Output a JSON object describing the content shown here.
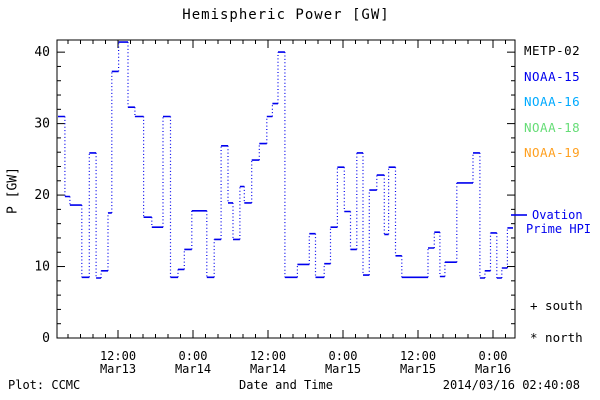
{
  "legend": {
    "satellites": [
      {
        "label": "METP-02",
        "color": "#000000"
      },
      {
        "label": "NOAA-15",
        "color": "#0000ee"
      },
      {
        "label": "NOAA-16",
        "color": "#00aaff"
      },
      {
        "label": "NOAA-18",
        "color": "#66dd77"
      },
      {
        "label": "NOAA-19",
        "color": "#ffa020"
      }
    ],
    "ovation_line1": "Ovation",
    "ovation_line2": "Prime HPI",
    "south_marker": "+ south",
    "north_marker": "* north"
  },
  "footer": {
    "credit": "Plot: CCMC",
    "timestamp": "2014/03/16 02:40:08"
  },
  "chart_data": {
    "type": "line",
    "title": "Hemispheric Power [GW]",
    "xlabel": "Date and Time",
    "ylabel": "P [GW]",
    "ylim": [
      0,
      41.7
    ],
    "y_major_ticks": [
      0,
      10,
      20,
      30,
      40
    ],
    "y_minor_step": 2,
    "x_hours_range": [
      2.24,
      75.52
    ],
    "x_minor_step_hours": 2,
    "x_major_ticks": [
      {
        "hours": 12,
        "time": "12:00",
        "date": "Mar13"
      },
      {
        "hours": 24,
        "time": "0:00",
        "date": "Mar14"
      },
      {
        "hours": 36,
        "time": "12:00",
        "date": "Mar14"
      },
      {
        "hours": 48,
        "time": "0:00",
        "date": "Mar15"
      },
      {
        "hours": 60,
        "time": "12:00",
        "date": "Mar15"
      },
      {
        "hours": 72,
        "time": "0:00",
        "date": "Mar16"
      }
    ],
    "grid": false,
    "legend_position": "right",
    "series": [
      {
        "name": "Ovation Prime HPI",
        "color": "#0000ee",
        "style": "dotted-step",
        "units": "GW",
        "end_hours": 75.2,
        "steps": [
          [
            2.4,
            31.0
          ],
          [
            3.5,
            19.8
          ],
          [
            4.3,
            18.6
          ],
          [
            6.2,
            8.5
          ],
          [
            7.4,
            25.9
          ],
          [
            8.5,
            8.4
          ],
          [
            9.3,
            9.4
          ],
          [
            10.4,
            17.5
          ],
          [
            11.0,
            37.3
          ],
          [
            12.1,
            41.4
          ],
          [
            13.6,
            32.3
          ],
          [
            14.7,
            31.0
          ],
          [
            16.1,
            16.9
          ],
          [
            17.4,
            15.5
          ],
          [
            19.2,
            31.0
          ],
          [
            20.4,
            8.5
          ],
          [
            21.6,
            9.6
          ],
          [
            22.6,
            12.4
          ],
          [
            23.8,
            17.8
          ],
          [
            26.2,
            8.5
          ],
          [
            27.4,
            13.8
          ],
          [
            28.5,
            26.9
          ],
          [
            29.6,
            18.9
          ],
          [
            30.4,
            13.8
          ],
          [
            31.5,
            21.2
          ],
          [
            32.2,
            18.9
          ],
          [
            33.4,
            24.9
          ],
          [
            34.6,
            27.2
          ],
          [
            35.8,
            31.0
          ],
          [
            36.7,
            32.8
          ],
          [
            37.6,
            40.0
          ],
          [
            38.7,
            8.5
          ],
          [
            40.7,
            10.3
          ],
          [
            42.6,
            14.6
          ],
          [
            43.6,
            8.5
          ],
          [
            45.0,
            10.4
          ],
          [
            46.0,
            15.5
          ],
          [
            47.1,
            23.9
          ],
          [
            48.2,
            17.7
          ],
          [
            49.2,
            12.4
          ],
          [
            50.2,
            25.9
          ],
          [
            51.2,
            8.8
          ],
          [
            52.2,
            20.7
          ],
          [
            53.4,
            22.8
          ],
          [
            54.6,
            14.5
          ],
          [
            55.3,
            23.9
          ],
          [
            56.4,
            11.5
          ],
          [
            57.4,
            8.5
          ],
          [
            61.6,
            12.6
          ],
          [
            62.6,
            14.8
          ],
          [
            63.5,
            8.6
          ],
          [
            64.3,
            10.6
          ],
          [
            66.2,
            21.7
          ],
          [
            68.8,
            25.9
          ],
          [
            69.9,
            8.4
          ],
          [
            70.7,
            9.4
          ],
          [
            71.6,
            14.7
          ],
          [
            72.6,
            8.4
          ],
          [
            73.4,
            9.8
          ],
          [
            74.3,
            15.4
          ]
        ]
      }
    ]
  }
}
